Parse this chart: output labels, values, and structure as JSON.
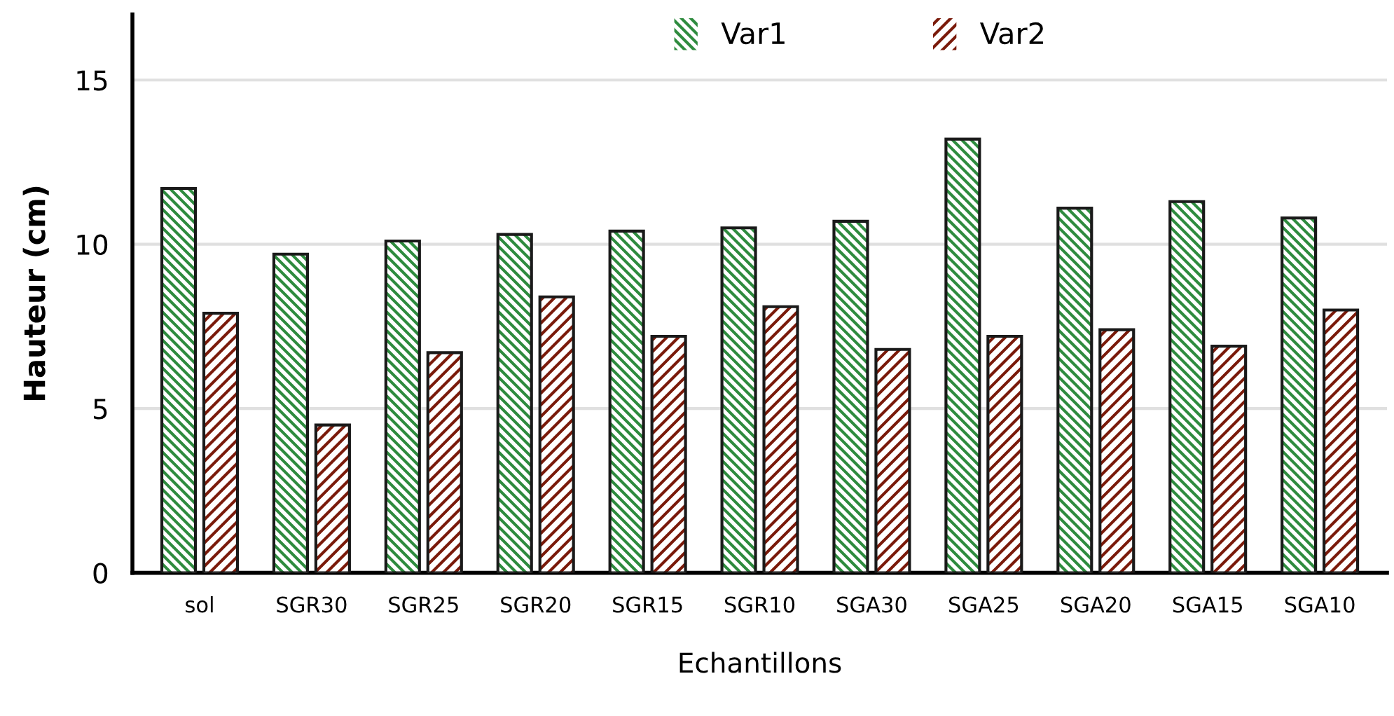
{
  "chart_data": {
    "type": "bar",
    "xlabel": "Echantillons",
    "ylabel": "Hauteur (cm)",
    "categories": [
      "sol",
      "SGR30",
      "SGR25",
      "SGR20",
      "SGR15",
      "SGR10",
      "SGA30",
      "SGA25",
      "SGA20",
      "SGA15",
      "SGA10"
    ],
    "series": [
      {
        "name": "Var1",
        "color": "#2e8b3e",
        "values": [
          11.7,
          9.7,
          10.1,
          10.3,
          10.4,
          10.5,
          10.7,
          13.2,
          11.1,
          11.3,
          10.8
        ]
      },
      {
        "name": "Var2",
        "color": "#7a1a0a",
        "values": [
          7.9,
          4.5,
          6.7,
          8.4,
          7.2,
          8.1,
          6.8,
          7.2,
          7.4,
          6.9,
          8.0
        ]
      }
    ],
    "ylim": [
      0,
      17
    ],
    "yticks": [
      0,
      5,
      10,
      15
    ],
    "grid": "y",
    "legend": "top"
  }
}
